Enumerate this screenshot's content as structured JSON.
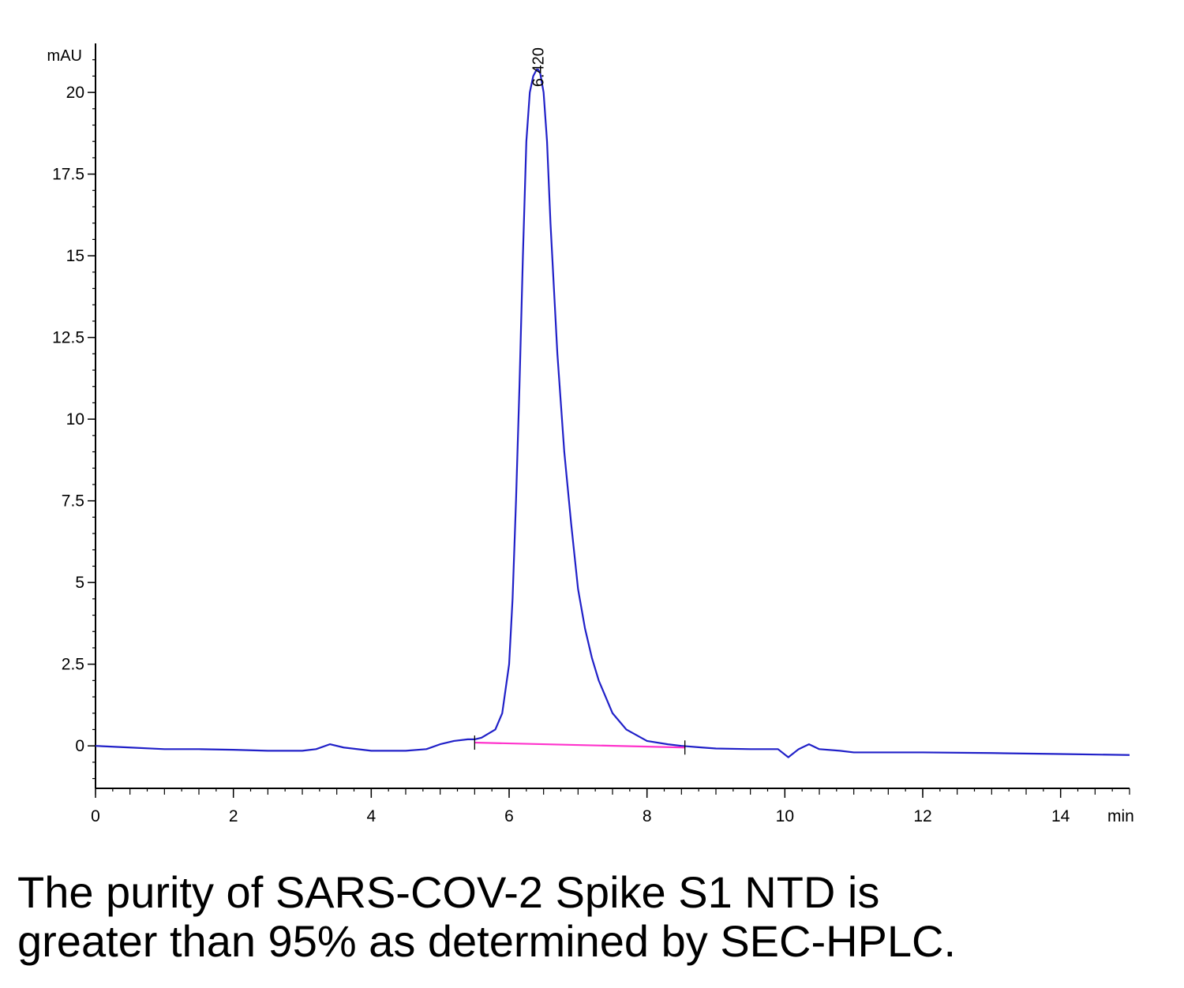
{
  "chart_data": {
    "type": "line",
    "title": "",
    "xlabel": "min",
    "ylabel": "mAU",
    "xlim": [
      0,
      15
    ],
    "ylim": [
      -1.3,
      21.5
    ],
    "xticks": [
      0,
      2,
      4,
      6,
      8,
      10,
      12,
      14
    ],
    "xtick_labels": [
      "0",
      "2",
      "4",
      "6",
      "8",
      "10",
      "12",
      "14"
    ],
    "yticks": [
      0,
      2.5,
      5,
      7.5,
      10,
      12.5,
      15,
      17.5,
      20
    ],
    "ytick_labels": [
      "0",
      "2.5",
      "5",
      "7.5",
      "10",
      "12.5",
      "15",
      "17.5",
      "20"
    ],
    "grid": false,
    "colors": {
      "signal": "#2020c8",
      "baseline": "#ff33cc",
      "axis": "#000000"
    },
    "series": [
      {
        "x": [
          0,
          0.5,
          1,
          1.5,
          2,
          2.5,
          3,
          3.2,
          3.4,
          3.6,
          4,
          4.5,
          4.8,
          5.0,
          5.2,
          5.4,
          5.5,
          5.6,
          5.8,
          5.9,
          6.0,
          6.05,
          6.1,
          6.15,
          6.2,
          6.25,
          6.3,
          6.35,
          6.4,
          6.42,
          6.45,
          6.5,
          6.55,
          6.6,
          6.7,
          6.8,
          6.9,
          7.0,
          7.1,
          7.2,
          7.3,
          7.5,
          7.7,
          8.0,
          8.3,
          8.5,
          8.8,
          9.0,
          9.5,
          9.9,
          10.05,
          10.2,
          10.35,
          10.5,
          10.8,
          11.0,
          11.5,
          12,
          13,
          14,
          15
        ],
        "y": [
          0,
          -0.05,
          -0.1,
          -0.1,
          -0.12,
          -0.15,
          -0.15,
          -0.1,
          0.05,
          -0.05,
          -0.15,
          -0.15,
          -0.1,
          0.05,
          0.15,
          0.2,
          0.2,
          0.25,
          0.5,
          1.0,
          2.5,
          4.5,
          7.5,
          11.0,
          15.0,
          18.5,
          20.0,
          20.5,
          20.7,
          20.7,
          20.6,
          20.0,
          18.5,
          16.0,
          12.0,
          9.0,
          6.8,
          4.8,
          3.6,
          2.7,
          2.0,
          1.0,
          0.5,
          0.15,
          0.05,
          0.0,
          -0.05,
          -0.08,
          -0.1,
          -0.1,
          -0.35,
          -0.1,
          0.05,
          -0.1,
          -0.15,
          -0.2,
          -0.2,
          -0.2,
          -0.22,
          -0.25,
          -0.28
        ]
      },
      {
        "x": [
          5.5,
          8.55
        ],
        "y": [
          0.1,
          -0.05
        ]
      }
    ],
    "annotations": [
      {
        "x": 6.42,
        "y": 20.7,
        "text": "6.420"
      }
    ],
    "integration_marks": [
      5.5,
      8.55
    ]
  },
  "caption": {
    "line1": "The purity of SARS-COV-2 Spike S1 NTD is",
    "line2": "greater than 95% as determined by SEC-HPLC."
  }
}
